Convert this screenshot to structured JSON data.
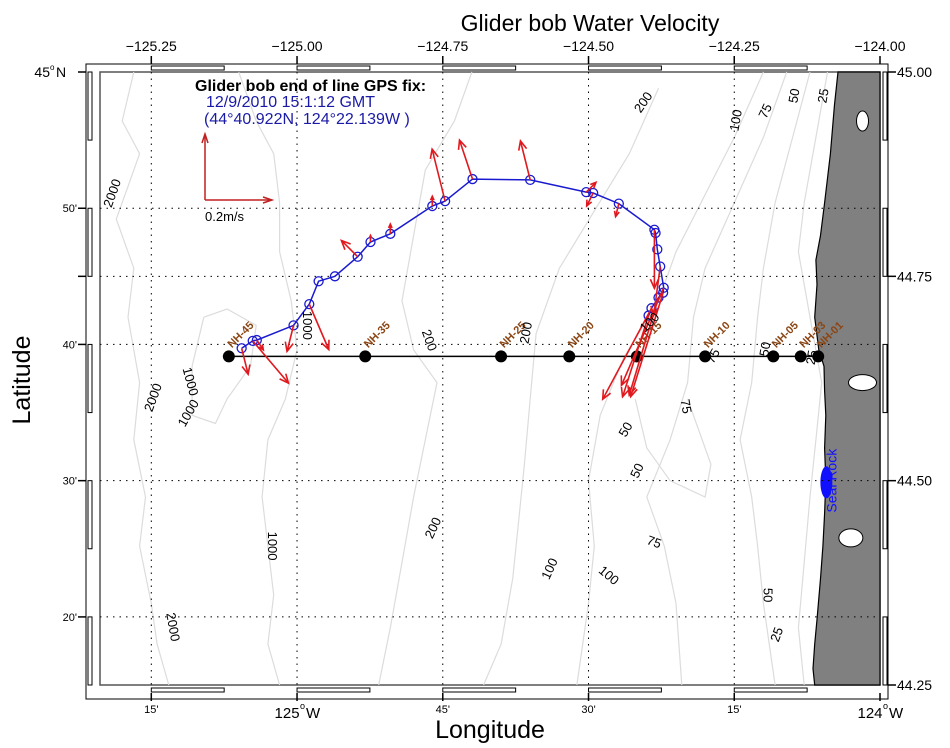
{
  "chart_data": {
    "type": "map",
    "title": "Glider bob Water Velocity",
    "xlabel": "Longitude",
    "ylabel": "Latitude",
    "lon_range": [
      -125.338,
      -124.0
    ],
    "lat_range": [
      44.25,
      45.0
    ],
    "top_ticks": [
      "-125.25",
      "-125.00",
      "-124.75",
      "-124.50",
      "-124.25",
      "-124.00"
    ],
    "top_tick_values": [
      -125.25,
      -125.0,
      -124.75,
      -124.5,
      -124.25,
      -124.0
    ],
    "right_ticks": [
      "45.00",
      "44.75",
      "44.50",
      "44.25"
    ],
    "right_tick_values": [
      45.0,
      44.75,
      44.5,
      44.25
    ],
    "bottom_ticks": [
      {
        "lon": -125.25,
        "label": "15'",
        "major": false
      },
      {
        "lon": -125.0,
        "label": "125",
        "suffix": "W",
        "major": true
      },
      {
        "lon": -124.75,
        "label": "45'",
        "major": false
      },
      {
        "lon": -124.5,
        "label": "30'",
        "major": false
      },
      {
        "lon": -124.25,
        "label": "15'",
        "major": false
      },
      {
        "lon": -124.0,
        "label": "124",
        "suffix": "W",
        "major": true
      }
    ],
    "left_ticks": [
      {
        "lat": 45.0,
        "label": "45",
        "suffix": "N",
        "major": true
      },
      {
        "lat": 44.8333,
        "label": "50'",
        "major": false
      },
      {
        "lat": 44.75,
        "label": "",
        "major": false
      },
      {
        "lat": 44.6667,
        "label": "40'",
        "major": false
      },
      {
        "lat": 44.5,
        "label": "30'",
        "major": false
      },
      {
        "lat": 44.3333,
        "label": "20'",
        "major": false
      }
    ],
    "grid": true,
    "gps_fix": {
      "heading": "Glider bob end of line GPS fix:",
      "datetime": "12/9/2010 15:1:12 GMT",
      "position": "(44°40.922N, 124°22.139W )"
    },
    "scale_arrow": {
      "label": "0.2m/s",
      "speed_ms": 0.2
    },
    "stations": [
      {
        "name": "NH-45",
        "lon": -125.117,
        "lat": 44.652
      },
      {
        "name": "NH-35",
        "lon": -124.883,
        "lat": 44.652
      },
      {
        "name": "NH-25",
        "lon": -124.65,
        "lat": 44.652
      },
      {
        "name": "NH-20",
        "lon": -124.533,
        "lat": 44.652
      },
      {
        "name": "NH-15",
        "lon": -124.417,
        "lat": 44.652
      },
      {
        "name": "NH-10",
        "lon": -124.3,
        "lat": 44.652
      },
      {
        "name": "NH-05",
        "lon": -124.183,
        "lat": 44.652
      },
      {
        "name": "NH-03",
        "lon": -124.136,
        "lat": 44.652
      },
      {
        "name": "NH-01",
        "lon": -124.106,
        "lat": 44.652
      }
    ],
    "glider_track": [
      {
        "lon": -125.095,
        "lat": 44.662
      },
      {
        "lon": -125.076,
        "lat": 44.671
      },
      {
        "lon": -125.069,
        "lat": 44.672
      },
      {
        "lon": -125.006,
        "lat": 44.69
      },
      {
        "lon": -124.979,
        "lat": 44.716
      },
      {
        "lon": -124.963,
        "lat": 44.744
      },
      {
        "lon": -124.935,
        "lat": 44.75
      },
      {
        "lon": -124.896,
        "lat": 44.774
      },
      {
        "lon": -124.874,
        "lat": 44.792
      },
      {
        "lon": -124.84,
        "lat": 44.802
      },
      {
        "lon": -124.768,
        "lat": 44.836
      },
      {
        "lon": -124.746,
        "lat": 44.842
      },
      {
        "lon": -124.699,
        "lat": 44.869
      },
      {
        "lon": -124.6,
        "lat": 44.868
      },
      {
        "lon": -124.504,
        "lat": 44.853
      },
      {
        "lon": -124.492,
        "lat": 44.852
      },
      {
        "lon": -124.448,
        "lat": 44.839
      },
      {
        "lon": -124.387,
        "lat": 44.807
      },
      {
        "lon": -124.385,
        "lat": 44.803
      },
      {
        "lon": -124.382,
        "lat": 44.783
      },
      {
        "lon": -124.377,
        "lat": 44.762
      },
      {
        "lon": -124.371,
        "lat": 44.736
      },
      {
        "lon": -124.372,
        "lat": 44.73
      },
      {
        "lon": -124.38,
        "lat": 44.724
      },
      {
        "lon": -124.392,
        "lat": 44.711
      },
      {
        "lon": -124.397,
        "lat": 44.702
      }
    ],
    "velocity_vectors": [
      {
        "lon": -125.095,
        "lat": 44.662,
        "u": 0.02,
        "v": -0.08
      },
      {
        "lon": -125.076,
        "lat": 44.671,
        "u": 0.11,
        "v": -0.13
      },
      {
        "lon": -125.069,
        "lat": 44.672,
        "u": 0.02,
        "v": -0.03
      },
      {
        "lon": -125.006,
        "lat": 44.69,
        "u": -0.02,
        "v": -0.08
      },
      {
        "lon": -124.979,
        "lat": 44.716,
        "u": 0.06,
        "v": -0.14
      },
      {
        "lon": -124.896,
        "lat": 44.774,
        "u": -0.05,
        "v": 0.05
      },
      {
        "lon": -124.874,
        "lat": 44.792,
        "u": 0.0,
        "v": 0.02
      },
      {
        "lon": -124.84,
        "lat": 44.802,
        "u": 0.0,
        "v": 0.03
      },
      {
        "lon": -124.768,
        "lat": 44.836,
        "u": 0.0,
        "v": 0.03
      },
      {
        "lon": -124.746,
        "lat": 44.842,
        "u": -0.04,
        "v": 0.16
      },
      {
        "lon": -124.699,
        "lat": 44.869,
        "u": -0.04,
        "v": 0.12
      },
      {
        "lon": -124.6,
        "lat": 44.868,
        "u": -0.03,
        "v": 0.12
      },
      {
        "lon": -124.504,
        "lat": 44.853,
        "u": 0.03,
        "v": 0.03
      },
      {
        "lon": -124.492,
        "lat": 44.852,
        "u": -0.02,
        "v": -0.04
      },
      {
        "lon": -124.448,
        "lat": 44.839,
        "u": -0.01,
        "v": -0.04
      },
      {
        "lon": -124.387,
        "lat": 44.807,
        "u": 0.0,
        "v": -0.18
      },
      {
        "lon": -124.377,
        "lat": 44.762,
        "u": -0.02,
        "v": -0.15
      },
      {
        "lon": -124.371,
        "lat": 44.736,
        "u": -0.13,
        "v": -0.3
      },
      {
        "lon": -124.372,
        "lat": 44.73,
        "u": -0.1,
        "v": -0.32
      },
      {
        "lon": -124.38,
        "lat": 44.724,
        "u": -0.09,
        "v": -0.3
      },
      {
        "lon": -124.392,
        "lat": 44.711,
        "u": -0.15,
        "v": -0.28
      },
      {
        "lon": -124.397,
        "lat": 44.702,
        "u": -0.08,
        "v": -0.25
      }
    ],
    "isobath_labels": [
      {
        "text": "2000",
        "lon": -125.31,
        "lat": 44.85,
        "angle": -70
      },
      {
        "text": "1000",
        "lon": -124.99,
        "lat": 44.69,
        "angle": 90
      },
      {
        "text": "2000",
        "lon": -125.24,
        "lat": 44.6,
        "angle": -70
      },
      {
        "text": "1000",
        "lon": -125.19,
        "lat": 44.62,
        "angle": 75
      },
      {
        "text": "1000",
        "lon": -125.18,
        "lat": 44.58,
        "angle": -60
      },
      {
        "text": "1000",
        "lon": -125.05,
        "lat": 44.42,
        "angle": 90
      },
      {
        "text": "2000",
        "lon": -125.22,
        "lat": 44.32,
        "angle": 80
      },
      {
        "text": "200",
        "lon": -124.78,
        "lat": 44.67,
        "angle": 70
      },
      {
        "text": "200",
        "lon": -124.6,
        "lat": 44.68,
        "angle": -80
      },
      {
        "text": "200",
        "lon": -124.4,
        "lat": 44.96,
        "angle": -55
      },
      {
        "text": "200",
        "lon": -124.76,
        "lat": 44.44,
        "angle": -65
      },
      {
        "text": "100",
        "lon": -124.39,
        "lat": 44.69,
        "angle": -45
      },
      {
        "text": "100",
        "lon": -124.56,
        "lat": 44.39,
        "angle": -65
      },
      {
        "text": "100",
        "lon": -124.47,
        "lat": 44.38,
        "angle": 40
      },
      {
        "text": "100",
        "lon": -124.24,
        "lat": 44.94,
        "angle": -80
      },
      {
        "text": "75",
        "lon": -124.34,
        "lat": 44.59,
        "angle": 80
      },
      {
        "text": "75",
        "lon": -124.28,
        "lat": 44.65,
        "angle": -60
      },
      {
        "text": "75",
        "lon": -124.19,
        "lat": 44.95,
        "angle": -65
      },
      {
        "text": "75",
        "lon": -124.39,
        "lat": 44.42,
        "angle": 20
      },
      {
        "text": "50",
        "lon": -124.43,
        "lat": 44.56,
        "angle": -60
      },
      {
        "text": "50",
        "lon": -124.41,
        "lat": 44.51,
        "angle": -65
      },
      {
        "text": "50",
        "lon": -124.19,
        "lat": 44.66,
        "angle": -80
      },
      {
        "text": "50",
        "lon": -124.14,
        "lat": 44.97,
        "angle": -80
      },
      {
        "text": "50",
        "lon": -124.2,
        "lat": 44.36,
        "angle": 90
      },
      {
        "text": "25",
        "lon": -124.11,
        "lat": 44.65,
        "angle": -80
      },
      {
        "text": "25",
        "lon": -124.09,
        "lat": 44.97,
        "angle": -80
      },
      {
        "text": "25",
        "lon": -124.17,
        "lat": 44.31,
        "angle": -70
      }
    ],
    "place_labels": [
      {
        "text": "Seal Rock",
        "lon": -124.075,
        "lat": 44.5,
        "angle": -90
      }
    ],
    "colors": {
      "track": "#1a1ad0",
      "vectors": "#e0191e",
      "scale_arrow": "#c02020",
      "stations": "#000000",
      "station_labels": "#8b4513",
      "gps_text": "#1a1aa6",
      "land": "#808080",
      "isobaths": "#dcdcdc",
      "place": "#1010ff"
    }
  }
}
